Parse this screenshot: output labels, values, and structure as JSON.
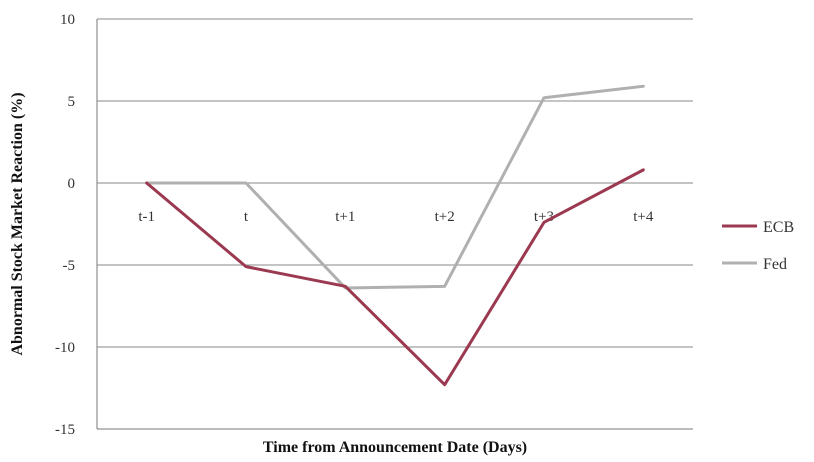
{
  "chart_data": {
    "type": "line",
    "categories": [
      "t-1",
      "t",
      "t+1",
      "t+2",
      "t+3",
      "t+4"
    ],
    "series": [
      {
        "name": "ECB",
        "color": "#9b3950",
        "values": [
          0,
          -5.1,
          -6.3,
          -12.3,
          -2.4,
          0.8
        ]
      },
      {
        "name": "Fed",
        "color": "#b0b0b0",
        "values": [
          0,
          0,
          -6.4,
          -6.3,
          5.2,
          5.9
        ]
      }
    ],
    "title": "",
    "xlabel": "Time from Announcement Date (Days)",
    "ylabel": "Abnormal Stock Market Reaction (%)",
    "ylim": [
      -15,
      10
    ],
    "yticks": [
      10,
      5,
      0,
      -5,
      -10,
      -15
    ],
    "grid": true,
    "legend": "right"
  }
}
